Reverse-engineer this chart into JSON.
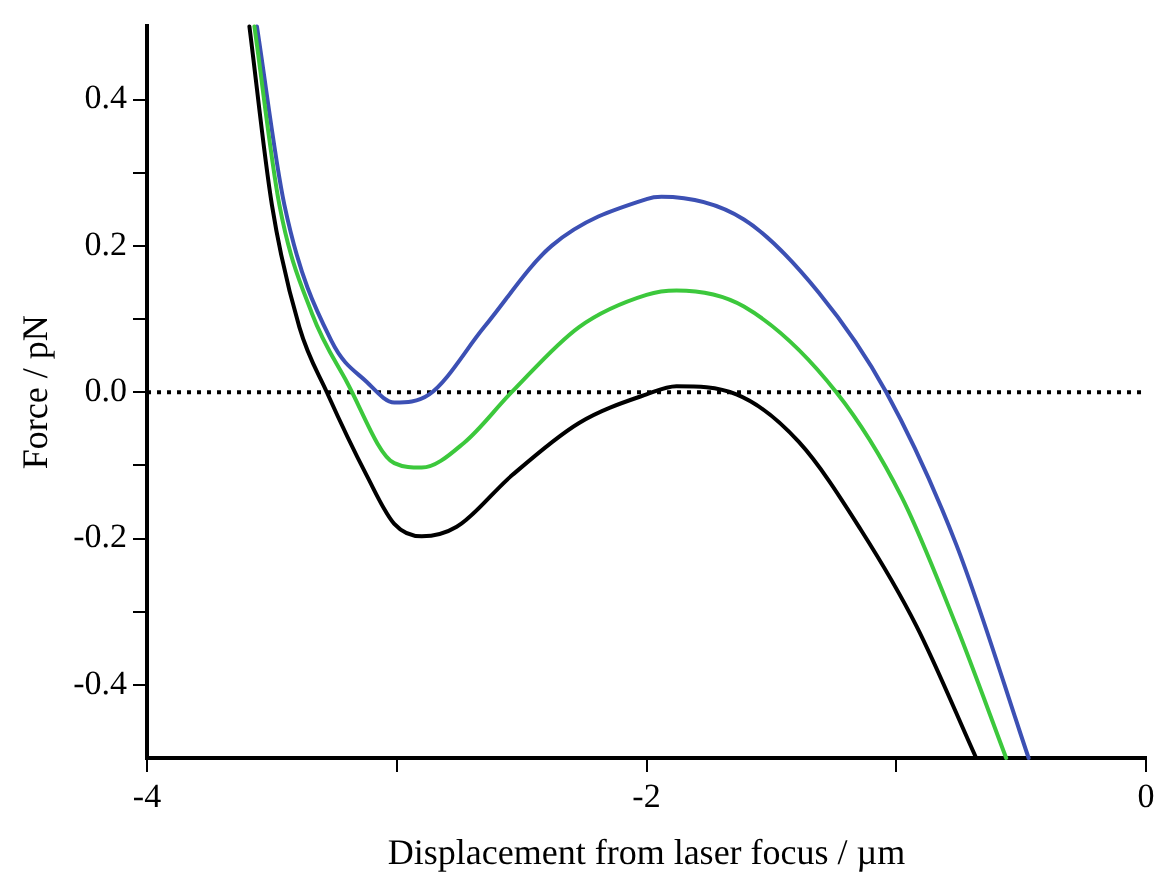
{
  "chart_data": {
    "type": "line",
    "xlabel": "Displacement from laser focus / µm",
    "ylabel": "Force / pN",
    "xlim": [
      -4,
      0
    ],
    "ylim": [
      -0.5,
      0.5
    ],
    "xticks": [
      -4,
      {
        "value": -3,
        "label": null
      },
      -2,
      {
        "value": -1,
        "label": null
      },
      0
    ],
    "yticks": [
      -0.4,
      {
        "value": -0.3,
        "label": null
      },
      -0.2,
      {
        "value": -0.1,
        "label": null
      },
      {
        "value": 0,
        "label": "0.0"
      },
      {
        "value": 0.1,
        "label": null
      },
      0.2,
      {
        "value": 0.3,
        "label": null
      },
      0.4
    ],
    "grid": false,
    "legend": false,
    "marker": "none",
    "line_style": "solid",
    "ref_lines": [
      {
        "axis": "y",
        "value": 0,
        "color": "#000000",
        "line_style": "dotted"
      }
    ],
    "series": [
      {
        "color": "#000000",
        "x": [
          -3.59,
          -3.5,
          -3.39,
          -3.28,
          -3.12,
          -3.01,
          -2.9,
          -2.76,
          -2.54,
          -2.27,
          -2.0,
          -1.88,
          -1.64,
          -1.39,
          -1.14,
          -0.92,
          -0.68
        ],
        "values": [
          0.5,
          0.256,
          0.089,
          0,
          -0.114,
          -0.18,
          -0.197,
          -0.184,
          -0.114,
          -0.042,
          -0.003,
          0.008,
          -0.003,
          -0.068,
          -0.189,
          -0.319,
          -0.5
        ]
      },
      {
        "color": "#3cc83c",
        "x": [
          -3.57,
          -3.47,
          -3.34,
          -3.2,
          -3.01,
          -2.9,
          -2.73,
          -2.54,
          -2.27,
          -2.0,
          -1.88,
          -1.61,
          -1.24,
          -0.98,
          -0.76,
          -0.56
        ],
        "values": [
          0.5,
          0.256,
          0.108,
          0.014,
          -0.097,
          -0.103,
          -0.069,
          0,
          0.089,
          0.133,
          0.139,
          0.117,
          0,
          -0.142,
          -0.319,
          -0.5
        ]
      },
      {
        "color": "#3c50b4",
        "x": [
          -3.56,
          -3.45,
          -3.26,
          -3.12,
          -3.01,
          -2.87,
          -2.65,
          -2.38,
          -2.0,
          -1.94,
          -1.61,
          -1.31,
          -1.04,
          -0.76,
          -0.47
        ],
        "values": [
          0.5,
          0.256,
          0.069,
          0.014,
          -0.014,
          -0.003,
          0.089,
          0.2,
          0.264,
          0.267,
          0.236,
          0.136,
          0,
          -0.208,
          -0.5
        ]
      }
    ]
  }
}
